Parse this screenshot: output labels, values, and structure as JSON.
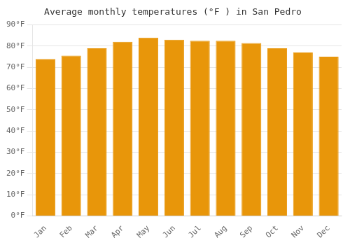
{
  "chart_data": {
    "type": "bar",
    "title": "Average monthly temperatures (°F ) in San Pedro",
    "categories": [
      "Jan",
      "Feb",
      "Mar",
      "Apr",
      "May",
      "Jun",
      "Jul",
      "Aug",
      "Sep",
      "Oct",
      "Nov",
      "Dec"
    ],
    "values": [
      74,
      75.5,
      79,
      82,
      84,
      83,
      82.5,
      82.5,
      81.5,
      79,
      77,
      75
    ],
    "color": "#E8960A",
    "ylim": [
      0,
      90
    ],
    "yticks": [
      {
        "value": 0,
        "label": "0°F"
      },
      {
        "value": 10,
        "label": "10°F"
      },
      {
        "value": 20,
        "label": "20°F"
      },
      {
        "value": 30,
        "label": "30°F"
      },
      {
        "value": 40,
        "label": "40°F"
      },
      {
        "value": 50,
        "label": "50°F"
      },
      {
        "value": 60,
        "label": "60°F"
      },
      {
        "value": 70,
        "label": "70°F"
      },
      {
        "value": 80,
        "label": "80°F"
      },
      {
        "value": 90,
        "label": "90°F"
      }
    ],
    "grid": true
  }
}
